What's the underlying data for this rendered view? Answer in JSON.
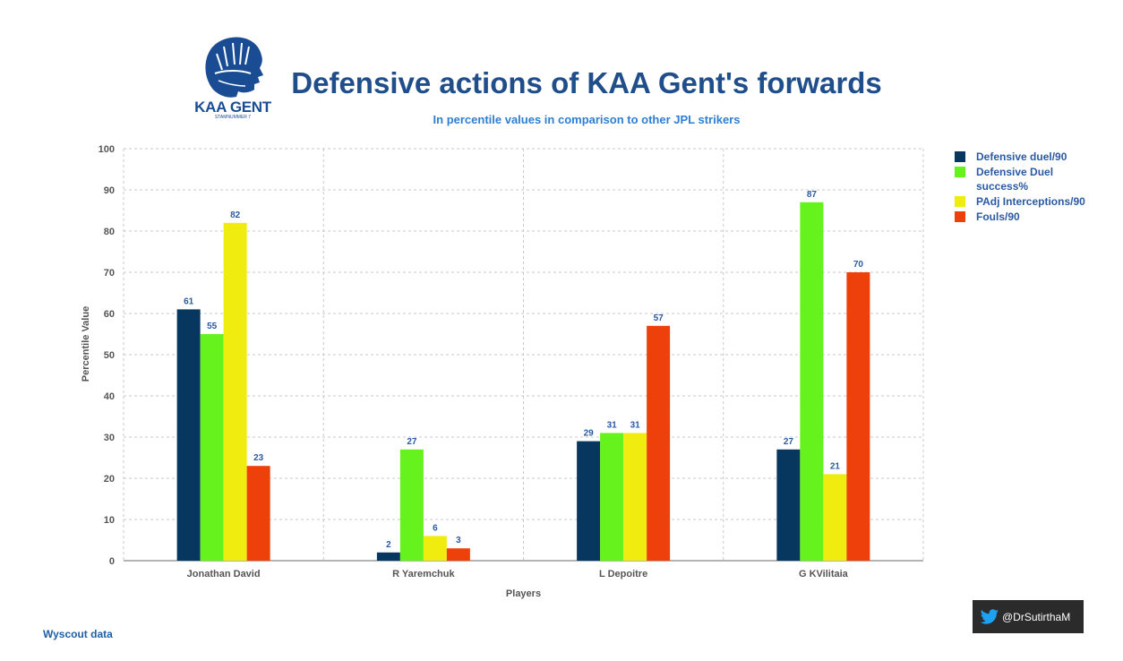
{
  "header": {
    "title": "Defensive actions of KAA Gent's forwards",
    "subtitle": "In percentile values in comparison to other JPL strikers",
    "logo_text": "KAA GENT",
    "logo_subtext": "STAMNUMMER 7"
  },
  "chart_data": {
    "type": "bar",
    "categories": [
      "Jonathan David",
      "R Yaremchuk",
      "L Depoitre",
      "G KVilitaia"
    ],
    "series": [
      {
        "name": "Defensive duel/90",
        "color": "#07375e",
        "values": [
          61,
          2,
          29,
          27
        ]
      },
      {
        "name": "Defensive Duel success%",
        "color": "#66f21c",
        "values": [
          55,
          27,
          31,
          87
        ]
      },
      {
        "name": "PAdj Interceptions/90",
        "color": "#f0ec0f",
        "values": [
          82,
          6,
          31,
          21
        ]
      },
      {
        "name": "Fouls/90",
        "color": "#ee400b",
        "values": [
          23,
          3,
          57,
          70
        ]
      }
    ],
    "xlabel": "Players",
    "ylabel": "Percentile Value",
    "ylim": [
      0,
      100
    ],
    "yticks": [
      0,
      10,
      20,
      30,
      40,
      50,
      60,
      70,
      80,
      90,
      100
    ],
    "grid": true,
    "legend_position": "top-right"
  },
  "footer": {
    "credit": "@DrSutirthaM",
    "source": "Wyscout data"
  }
}
